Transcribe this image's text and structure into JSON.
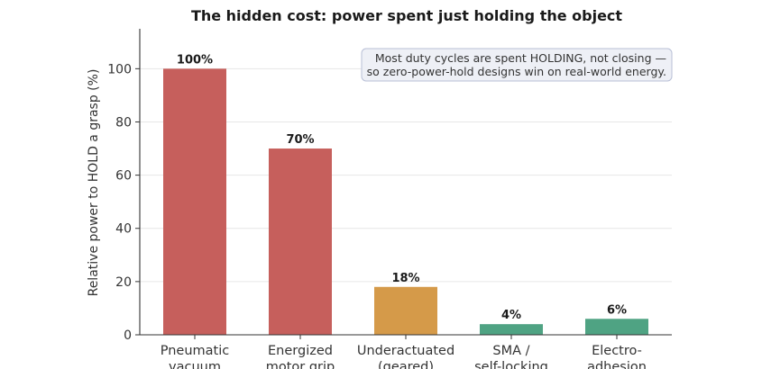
{
  "chart_data": {
    "type": "bar",
    "title": "The hidden cost: power spent just holding the object",
    "xlabel": "",
    "ylabel": "Relative power to HOLD a grasp (%)",
    "ylim": [
      0,
      115
    ],
    "yticks": [
      0,
      20,
      40,
      60,
      80,
      100
    ],
    "grid": "horizontal",
    "categories": [
      [
        "Pneumatic",
        "vacuum"
      ],
      [
        "Energized",
        "motor grip"
      ],
      [
        "Underactuated",
        "(geared)"
      ],
      [
        "SMA /",
        "self-locking"
      ],
      [
        "Electro-",
        "adhesion"
      ]
    ],
    "values": [
      100,
      70,
      18,
      4,
      6
    ],
    "data_labels": [
      "100%",
      "70%",
      "18%",
      "4%",
      "6%"
    ],
    "bar_colors": [
      "#c65f5c",
      "#c65f5c",
      "#d59a49",
      "#4fa383",
      "#4fa383"
    ],
    "annotation": {
      "lines": [
        "Most duty cycles are spent HOLDING, not closing —",
        "so zero-power-hold designs win on real-world energy."
      ],
      "placement": "top-right",
      "background": "#eef0f6",
      "border": "#b8bfd6"
    }
  }
}
